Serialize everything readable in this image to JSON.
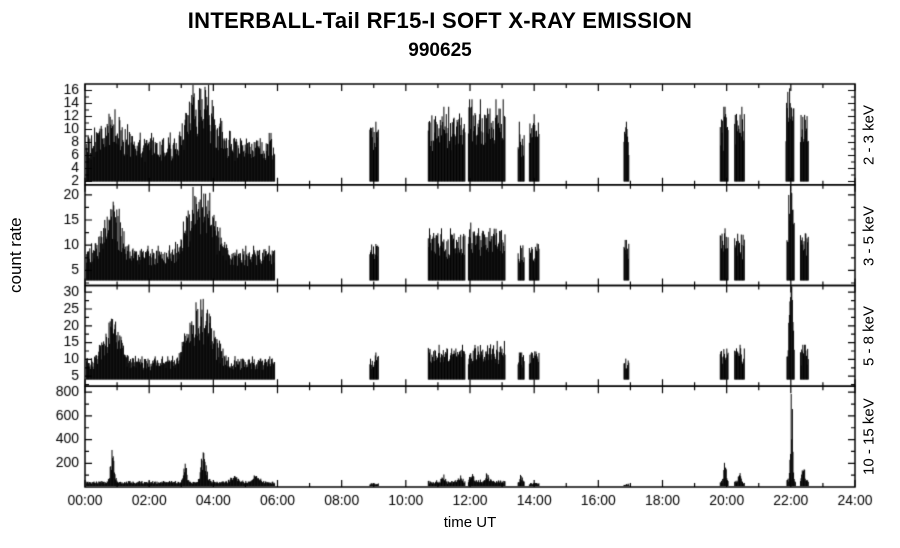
{
  "chart_data": {
    "type": "line",
    "title": "INTERBALL-Tail RF15-I SOFT X-RAY EMISSION",
    "subtitle": "990625",
    "xlabel": "time UT",
    "ylabel": "count rate",
    "line_color": "#000000",
    "background": "#ffffff",
    "x_range_hours": [
      0,
      24
    ],
    "x_major_tick_hours": 2,
    "x_tick_labels": [
      "00:00",
      "02:00",
      "04:00",
      "06:00",
      "08:00",
      "10:00",
      "12:00",
      "14:00",
      "16:00",
      "18:00",
      "20:00",
      "22:00",
      "24:00"
    ],
    "panels": [
      {
        "band": "2 - 3 keV",
        "ylim": [
          1.5,
          17
        ],
        "yticks": [
          2,
          4,
          6,
          8,
          10,
          12,
          14,
          16
        ],
        "segments": [
          {
            "t0": 0.0,
            "t1": 5.92,
            "lo": 2,
            "hi": 8.5,
            "peaks": [
              {
                "t": 0.85,
                "amp": 5,
                "w": 0.28
              },
              {
                "t": 3.3,
                "amp": 4,
                "w": 0.22
              },
              {
                "t": 3.75,
                "amp": 7,
                "w": 0.3
              }
            ]
          },
          {
            "t0": 8.88,
            "t1": 9.15,
            "lo": 2,
            "hi": 10
          },
          {
            "t0": 10.7,
            "t1": 11.85,
            "lo": 2,
            "hi": 12
          },
          {
            "t0": 11.95,
            "t1": 13.1,
            "lo": 2,
            "hi": 13
          },
          {
            "t0": 13.5,
            "t1": 13.7,
            "lo": 2,
            "hi": 10
          },
          {
            "t0": 13.85,
            "t1": 14.15,
            "lo": 2,
            "hi": 11
          },
          {
            "t0": 16.8,
            "t1": 16.95,
            "lo": 2,
            "hi": 10
          },
          {
            "t0": 19.8,
            "t1": 20.05,
            "lo": 2,
            "hi": 12
          },
          {
            "t0": 20.25,
            "t1": 20.55,
            "lo": 2,
            "hi": 12
          },
          {
            "t0": 21.85,
            "t1": 22.1,
            "lo": 2,
            "hi": 13,
            "peaks": [
              {
                "t": 21.97,
                "amp": 4,
                "w": 0.06
              }
            ]
          },
          {
            "t0": 22.3,
            "t1": 22.55,
            "lo": 2,
            "hi": 12
          }
        ]
      },
      {
        "band": "3 - 5 keV",
        "ylim": [
          2,
          22
        ],
        "yticks": [
          5,
          10,
          15,
          20
        ],
        "segments": [
          {
            "t0": 0.0,
            "t1": 5.92,
            "lo": 3,
            "hi": 9,
            "peaks": [
              {
                "t": 0.85,
                "amp": 9,
                "w": 0.26
              },
              {
                "t": 3.3,
                "amp": 6,
                "w": 0.22
              },
              {
                "t": 3.75,
                "amp": 10,
                "w": 0.3
              }
            ]
          },
          {
            "t0": 8.88,
            "t1": 9.15,
            "lo": 3,
            "hi": 10
          },
          {
            "t0": 10.7,
            "t1": 11.85,
            "lo": 3,
            "hi": 12
          },
          {
            "t0": 11.95,
            "t1": 13.1,
            "lo": 3,
            "hi": 13
          },
          {
            "t0": 13.5,
            "t1": 13.7,
            "lo": 3,
            "hi": 10
          },
          {
            "t0": 13.85,
            "t1": 14.15,
            "lo": 3,
            "hi": 10
          },
          {
            "t0": 16.8,
            "t1": 16.95,
            "lo": 3,
            "hi": 10
          },
          {
            "t0": 19.8,
            "t1": 20.05,
            "lo": 3,
            "hi": 12
          },
          {
            "t0": 20.25,
            "t1": 20.55,
            "lo": 3,
            "hi": 12
          },
          {
            "t0": 21.88,
            "t1": 22.12,
            "lo": 3,
            "hi": 13,
            "peaks": [
              {
                "t": 22.0,
                "amp": 14,
                "w": 0.05
              }
            ]
          },
          {
            "t0": 22.3,
            "t1": 22.55,
            "lo": 3,
            "hi": 12
          }
        ]
      },
      {
        "band": "5 - 8 keV",
        "ylim": [
          2,
          32
        ],
        "yticks": [
          5,
          10,
          15,
          20,
          25,
          30
        ],
        "segments": [
          {
            "t0": 0.0,
            "t1": 5.92,
            "lo": 4,
            "hi": 10,
            "peaks": [
              {
                "t": 0.85,
                "amp": 12,
                "w": 0.24
              },
              {
                "t": 3.3,
                "amp": 8,
                "w": 0.2
              },
              {
                "t": 3.75,
                "amp": 14,
                "w": 0.28
              }
            ]
          },
          {
            "t0": 8.88,
            "t1": 9.15,
            "lo": 4,
            "hi": 11
          },
          {
            "t0": 10.7,
            "t1": 11.85,
            "lo": 4,
            "hi": 13
          },
          {
            "t0": 11.95,
            "t1": 13.1,
            "lo": 4,
            "hi": 14
          },
          {
            "t0": 13.5,
            "t1": 13.7,
            "lo": 4,
            "hi": 11
          },
          {
            "t0": 13.85,
            "t1": 14.15,
            "lo": 4,
            "hi": 12
          },
          {
            "t0": 16.8,
            "t1": 16.95,
            "lo": 4,
            "hi": 10
          },
          {
            "t0": 19.8,
            "t1": 20.05,
            "lo": 4,
            "hi": 13
          },
          {
            "t0": 20.25,
            "t1": 20.55,
            "lo": 4,
            "hi": 13
          },
          {
            "t0": 21.88,
            "t1": 22.12,
            "lo": 4,
            "hi": 14,
            "peaks": [
              {
                "t": 22.0,
                "amp": 24,
                "w": 0.045
              }
            ]
          },
          {
            "t0": 22.3,
            "t1": 22.55,
            "lo": 4,
            "hi": 13
          }
        ]
      },
      {
        "band": "10 - 15 keV",
        "ylim": [
          0,
          850
        ],
        "yticks": [
          200,
          400,
          600,
          800
        ],
        "segments": [
          {
            "t0": 0.0,
            "t1": 5.92,
            "lo": 8,
            "hi": 45,
            "peaks": [
              {
                "t": 0.85,
                "amp": 230,
                "w": 0.06
              },
              {
                "t": 3.12,
                "amp": 155,
                "w": 0.05
              },
              {
                "t": 3.7,
                "amp": 245,
                "w": 0.08
              },
              {
                "t": 4.65,
                "amp": 45,
                "w": 0.12
              },
              {
                "t": 5.35,
                "amp": 55,
                "w": 0.1
              }
            ]
          },
          {
            "t0": 8.88,
            "t1": 9.15,
            "lo": 5,
            "hi": 30
          },
          {
            "t0": 10.7,
            "t1": 11.85,
            "lo": 5,
            "hi": 50,
            "peaks": [
              {
                "t": 11.15,
                "amp": 55,
                "w": 0.05
              },
              {
                "t": 11.7,
                "amp": 45,
                "w": 0.05
              }
            ]
          },
          {
            "t0": 11.95,
            "t1": 13.1,
            "lo": 5,
            "hi": 55,
            "peaks": [
              {
                "t": 12.05,
                "amp": 70,
                "w": 0.06
              },
              {
                "t": 12.55,
                "amp": 80,
                "w": 0.05
              }
            ]
          },
          {
            "t0": 13.5,
            "t1": 13.7,
            "lo": 5,
            "hi": 40,
            "peaks": [
              {
                "t": 13.6,
                "amp": 60,
                "w": 0.04
              }
            ]
          },
          {
            "t0": 13.85,
            "t1": 14.15,
            "lo": 5,
            "hi": 35
          },
          {
            "t0": 16.8,
            "t1": 16.95,
            "lo": 5,
            "hi": 25
          },
          {
            "t0": 19.8,
            "t1": 20.05,
            "lo": 5,
            "hi": 45,
            "peaks": [
              {
                "t": 19.95,
                "amp": 195,
                "w": 0.035
              }
            ]
          },
          {
            "t0": 20.25,
            "t1": 20.55,
            "lo": 5,
            "hi": 45,
            "peaks": [
              {
                "t": 20.4,
                "amp": 90,
                "w": 0.035
              }
            ]
          },
          {
            "t0": 21.88,
            "t1": 22.15,
            "lo": 5,
            "hi": 60,
            "peaks": [
              {
                "t": 22.02,
                "amp": 800,
                "w": 0.03
              }
            ]
          },
          {
            "t0": 22.3,
            "t1": 22.55,
            "lo": 5,
            "hi": 60,
            "peaks": [
              {
                "t": 22.4,
                "amp": 140,
                "w": 0.04
              }
            ]
          }
        ]
      }
    ]
  }
}
